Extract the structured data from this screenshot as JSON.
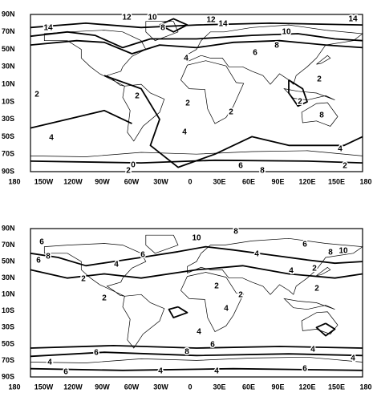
{
  "maps": [
    {
      "latitude_labels": [
        "90N",
        "70N",
        "50N",
        "30N",
        "10N",
        "10S",
        "30S",
        "50S",
        "70S",
        "90S"
      ],
      "longitude_labels": [
        "180",
        "150W",
        "120W",
        "90W",
        "60W",
        "30W",
        "0",
        "30E",
        "60E",
        "90E",
        "120E",
        "150E",
        "180"
      ],
      "contour_labels": [
        "14",
        "12",
        "10",
        "8",
        "12",
        "14",
        "14",
        "10",
        "8",
        "6",
        "4",
        "2",
        "2",
        "2",
        "2",
        "2",
        "2",
        "8",
        "4",
        "4",
        "0",
        "2",
        "6",
        "8",
        "4",
        "2"
      ]
    },
    {
      "latitude_labels": [
        "90N",
        "70N",
        "50N",
        "30N",
        "10N",
        "10S",
        "30S",
        "50S",
        "70S",
        "90S"
      ],
      "longitude_labels": [
        "180",
        "150W",
        "120W",
        "90W",
        "60W",
        "30W",
        "0",
        "30E",
        "60E",
        "90E",
        "120E",
        "150E",
        "180"
      ],
      "contour_labels": [
        "6",
        "8",
        "6",
        "2",
        "2",
        "4",
        "6",
        "10",
        "8",
        "4",
        "2",
        "2",
        "4",
        "6",
        "8",
        "10",
        "2",
        "4",
        "2",
        "4",
        "4",
        "6",
        "8",
        "6",
        "4",
        "6",
        "4",
        "4",
        "6",
        "4"
      ]
    }
  ]
}
